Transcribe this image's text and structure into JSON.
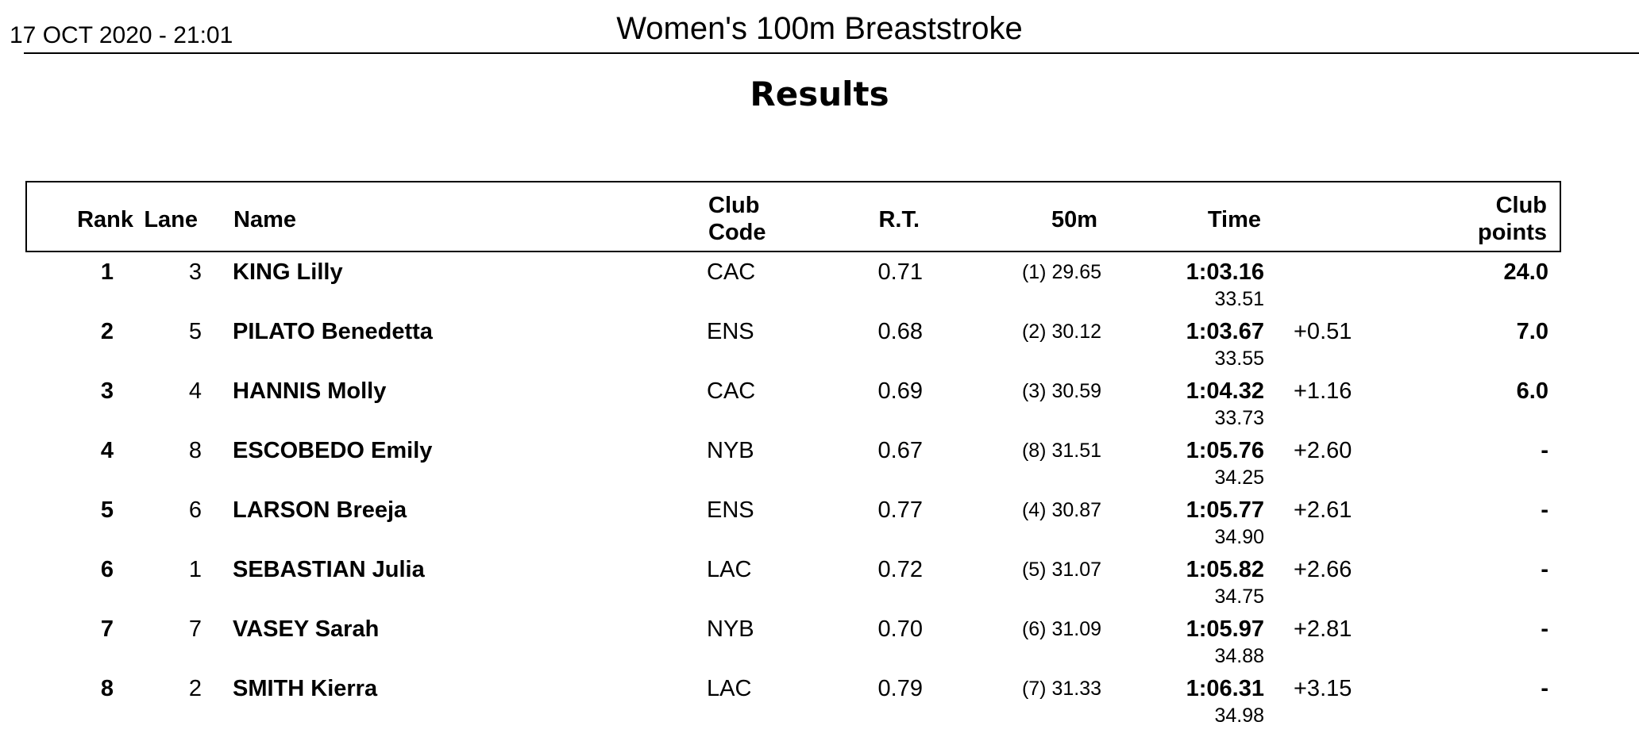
{
  "header": {
    "date": "17 OCT 2020 - 21:01",
    "event": "Women's 100m Breaststroke",
    "results_label": "Results"
  },
  "columns": {
    "rank": "Rank",
    "lane": "Lane",
    "name": "Name",
    "club_code_1": "Club",
    "club_code_2": "Code",
    "rt": "R.T.",
    "split50": "50m",
    "time": "Time",
    "club_points_1": "Club",
    "club_points_2": "points"
  },
  "rows": [
    {
      "rank": "1",
      "lane": "3",
      "name": "KING Lilly",
      "club": "CAC",
      "rt": "0.71",
      "split50": "(1) 29.65",
      "time": "1:03.16",
      "split": "33.51",
      "behind": "",
      "points": "24.0"
    },
    {
      "rank": "2",
      "lane": "5",
      "name": "PILATO Benedetta",
      "club": "ENS",
      "rt": "0.68",
      "split50": "(2) 30.12",
      "time": "1:03.67",
      "split": "33.55",
      "behind": "+0.51",
      "points": "7.0"
    },
    {
      "rank": "3",
      "lane": "4",
      "name": "HANNIS Molly",
      "club": "CAC",
      "rt": "0.69",
      "split50": "(3) 30.59",
      "time": "1:04.32",
      "split": "33.73",
      "behind": "+1.16",
      "points": "6.0"
    },
    {
      "rank": "4",
      "lane": "8",
      "name": "ESCOBEDO Emily",
      "club": "NYB",
      "rt": "0.67",
      "split50": "(8) 31.51",
      "time": "1:05.76",
      "split": "34.25",
      "behind": "+2.60",
      "points": "-"
    },
    {
      "rank": "5",
      "lane": "6",
      "name": "LARSON Breeja",
      "club": "ENS",
      "rt": "0.77",
      "split50": "(4) 30.87",
      "time": "1:05.77",
      "split": "34.90",
      "behind": "+2.61",
      "points": "-"
    },
    {
      "rank": "6",
      "lane": "1",
      "name": "SEBASTIAN Julia",
      "club": "LAC",
      "rt": "0.72",
      "split50": "(5) 31.07",
      "time": "1:05.82",
      "split": "34.75",
      "behind": "+2.66",
      "points": "-"
    },
    {
      "rank": "7",
      "lane": "7",
      "name": "VASEY Sarah",
      "club": "NYB",
      "rt": "0.70",
      "split50": "(6) 31.09",
      "time": "1:05.97",
      "split": "34.88",
      "behind": "+2.81",
      "points": "-"
    },
    {
      "rank": "8",
      "lane": "2",
      "name": "SMITH Kierra",
      "club": "LAC",
      "rt": "0.79",
      "split50": "(7) 31.33",
      "time": "1:06.31",
      "split": "34.98",
      "behind": "+3.15",
      "points": "-"
    }
  ]
}
